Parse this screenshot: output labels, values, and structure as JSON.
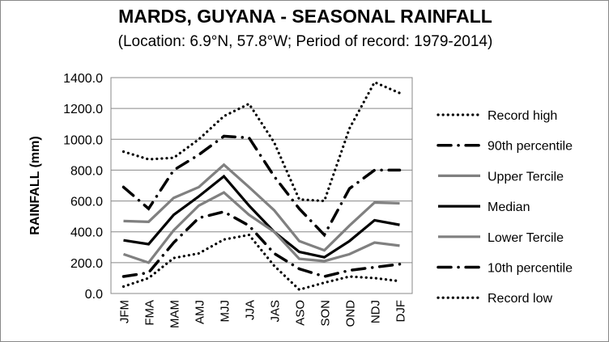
{
  "chart_data": {
    "type": "line",
    "title": "MARDS, GUYANA - SEASONAL RAINFALL",
    "subtitle": "(Location: 6.9°N, 57.8°W; Period of record: 1979-2014)",
    "xlabel": "",
    "ylabel": "RAINFALL (mm)",
    "ylim": [
      0,
      1400
    ],
    "yticks": [
      "0.0",
      "200.0",
      "400.0",
      "600.0",
      "800.0",
      "1000.0",
      "1200.0",
      "1400.0"
    ],
    "grid": true,
    "legend_position": "right",
    "categories": [
      "JFM",
      "FMA",
      "MAM",
      "AMJ",
      "MJJ",
      "JJA",
      "JAS",
      "ASO",
      "SON",
      "OND",
      "NDJ",
      "DJF"
    ],
    "series": [
      {
        "name": "Record high",
        "style": "dotted",
        "color": "#000000",
        "values": [
          920,
          870,
          880,
          1000,
          1150,
          1230,
          980,
          610,
          600,
          1070,
          1370,
          1300
        ]
      },
      {
        "name": "90th percentile",
        "style": "dashdot",
        "color": "#000000",
        "values": [
          690,
          550,
          800,
          900,
          1020,
          1010,
          760,
          550,
          380,
          680,
          800,
          800
        ]
      },
      {
        "name": "Upper Tercile",
        "style": "solid",
        "color": "#808080",
        "values": [
          470,
          465,
          620,
          690,
          835,
          690,
          540,
          340,
          280,
          440,
          590,
          585
        ]
      },
      {
        "name": "Median",
        "style": "solid",
        "color": "#000000",
        "values": [
          345,
          320,
          510,
          630,
          760,
          570,
          400,
          270,
          235,
          340,
          475,
          445
        ]
      },
      {
        "name": "Lower Tercile",
        "style": "solid",
        "color": "#808080",
        "values": [
          255,
          200,
          410,
          570,
          655,
          510,
          400,
          225,
          210,
          255,
          330,
          310
        ]
      },
      {
        "name": "10th percentile",
        "style": "dashdot",
        "color": "#000000",
        "values": [
          110,
          135,
          330,
          490,
          530,
          440,
          260,
          160,
          110,
          150,
          170,
          190
        ]
      },
      {
        "name": "Record low",
        "style": "dotted",
        "color": "#000000",
        "values": [
          45,
          100,
          230,
          260,
          350,
          380,
          180,
          25,
          70,
          110,
          100,
          80
        ]
      }
    ]
  }
}
